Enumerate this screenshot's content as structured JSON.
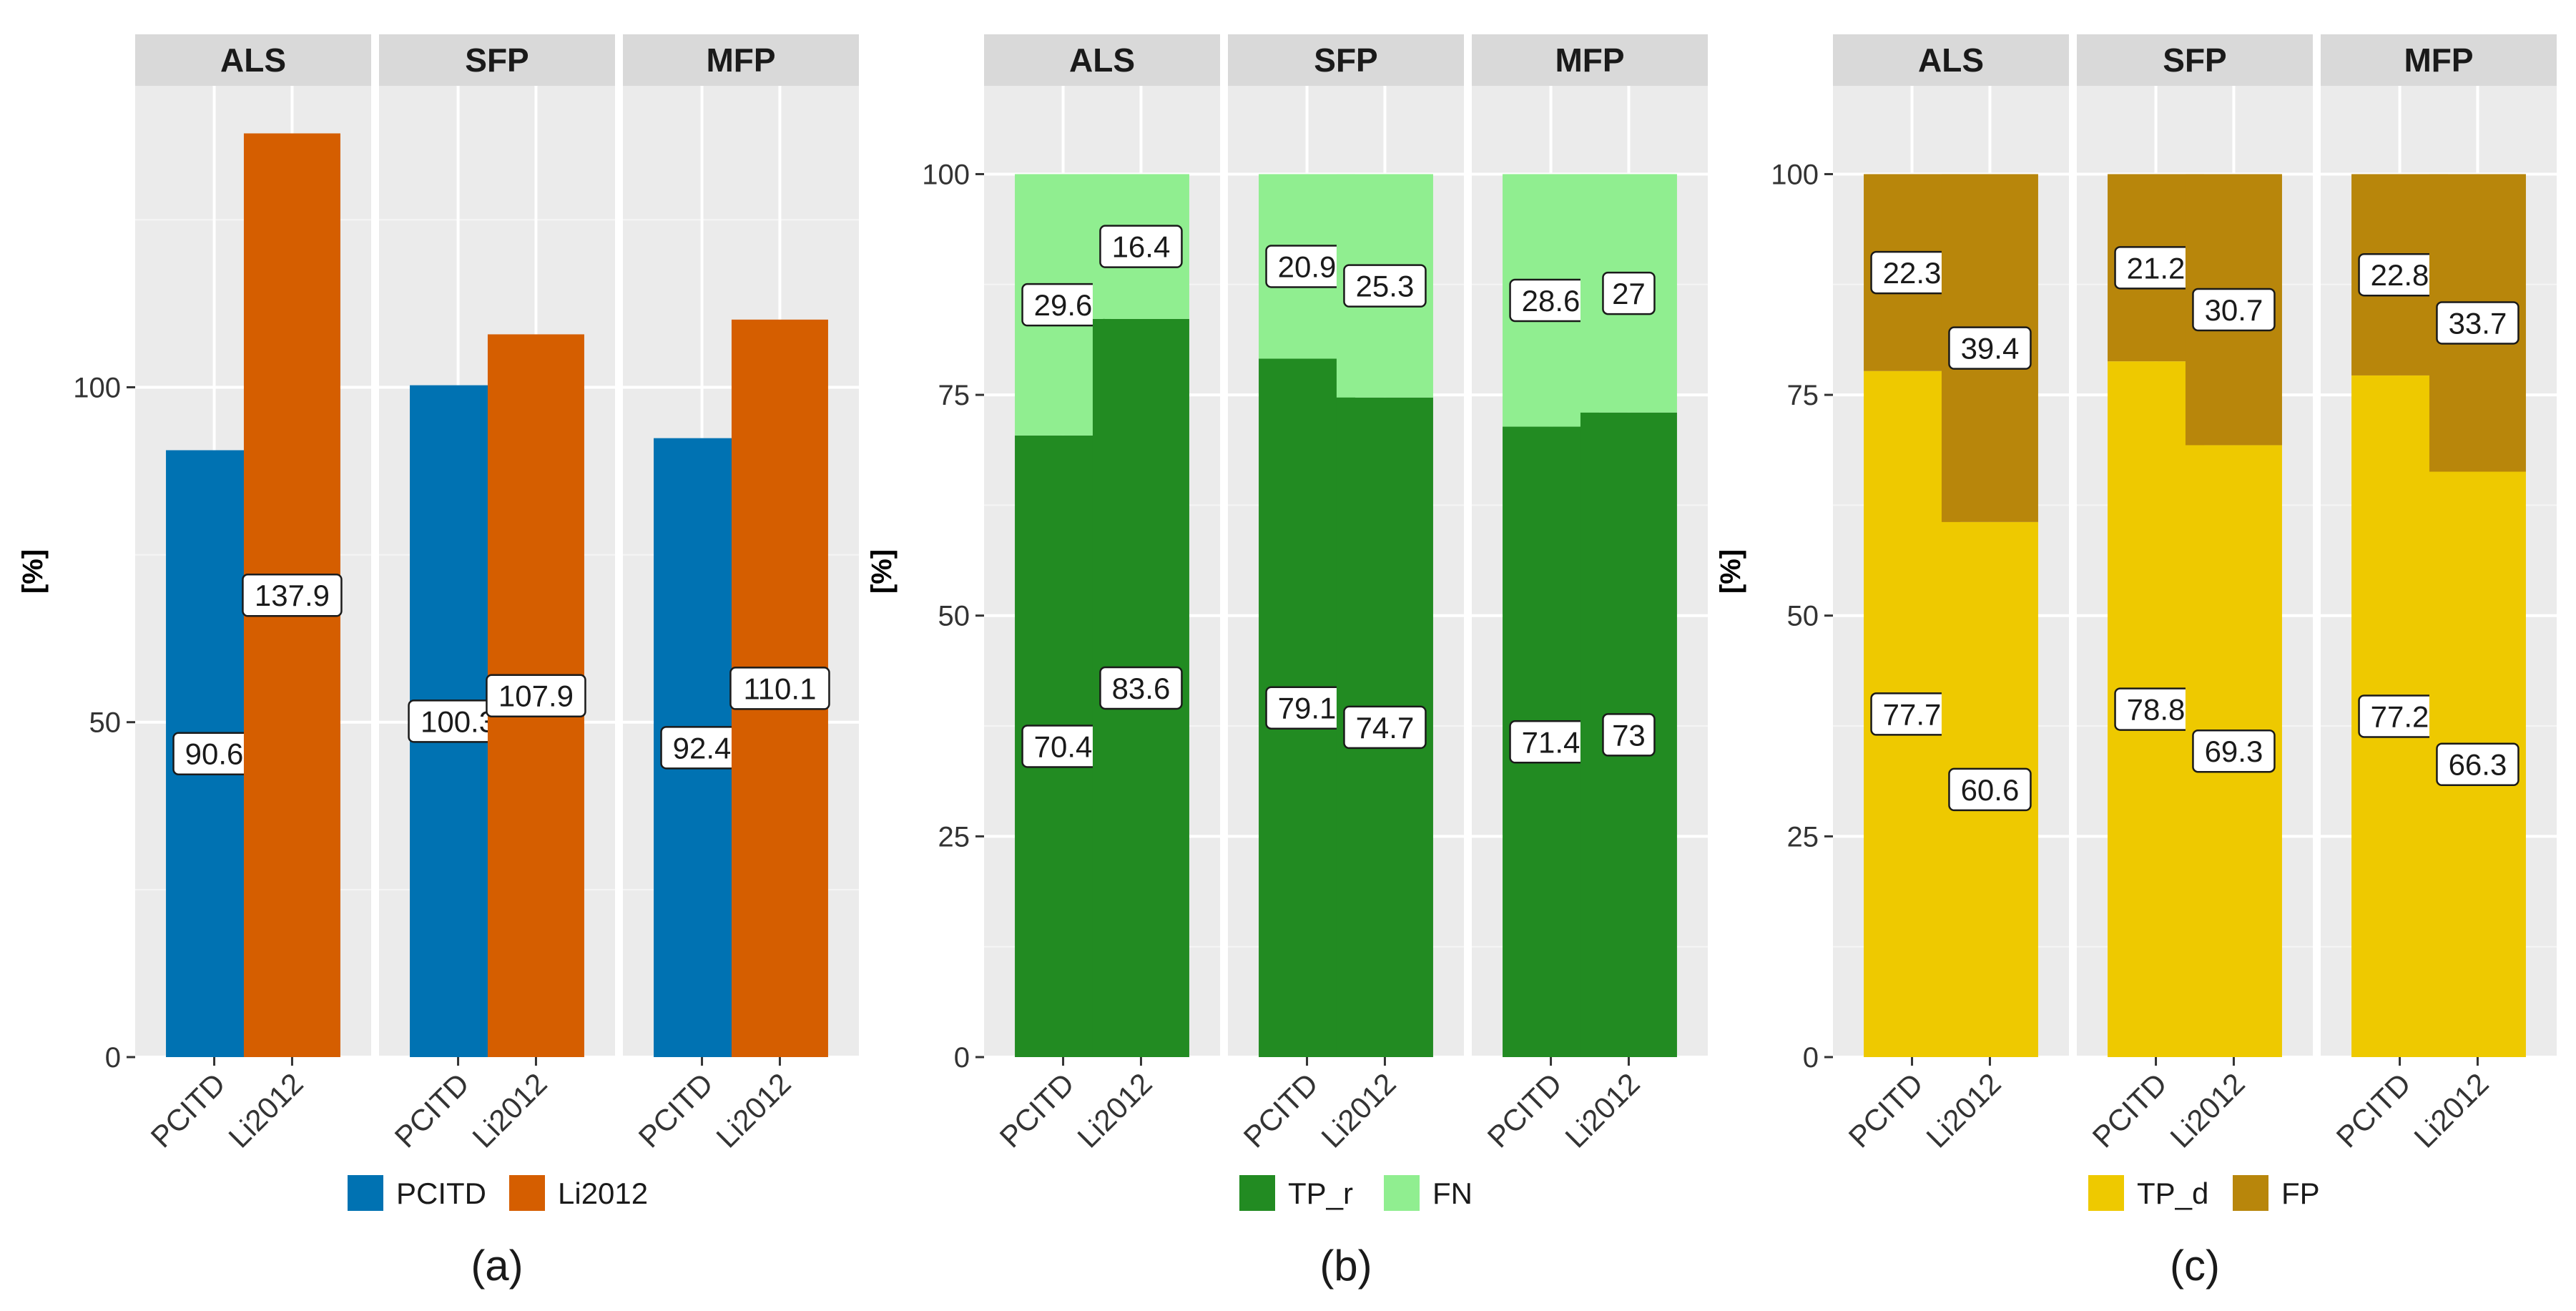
{
  "chart_data": [
    {
      "type": "bar",
      "panel_label": "(a)",
      "ylabel": "[%]",
      "ylim": [
        0,
        145
      ],
      "yticks": [
        0,
        50,
        100
      ],
      "facets": [
        "ALS",
        "SFP",
        "MFP"
      ],
      "categories": [
        "PCITD",
        "Li2012"
      ],
      "legend": [
        "PCITD",
        "Li2012"
      ],
      "colors": [
        "#0072b2",
        "#d55e00"
      ],
      "stacked": false,
      "values": [
        [
          90.6,
          137.9
        ],
        [
          100.3,
          107.9
        ],
        [
          92.4,
          110.1
        ]
      ],
      "labels": [
        [
          "90.6",
          "137.9"
        ],
        [
          "100.3",
          "107.9"
        ],
        [
          "92.4",
          "110.1"
        ]
      ]
    },
    {
      "type": "bar",
      "panel_label": "(b)",
      "ylabel": "[%]",
      "ylim": [
        0,
        110
      ],
      "yticks": [
        0,
        25,
        50,
        75,
        100
      ],
      "facets": [
        "ALS",
        "SFP",
        "MFP"
      ],
      "categories": [
        "PCITD",
        "Li2012"
      ],
      "legend": [
        "TP_r",
        "FN"
      ],
      "colors": [
        "#228b22",
        "#90ee90"
      ],
      "stacked": true,
      "series": [
        {
          "name": "TP_r",
          "values": [
            [
              70.4,
              83.6
            ],
            [
              79.1,
              74.7
            ],
            [
              71.4,
              73
            ]
          ],
          "labels": [
            [
              "70.4",
              "83.6"
            ],
            [
              "79.1",
              "74.7"
            ],
            [
              "71.4",
              "73"
            ]
          ]
        },
        {
          "name": "FN",
          "values": [
            [
              29.6,
              16.4
            ],
            [
              20.9,
              25.3
            ],
            [
              28.6,
              27
            ]
          ],
          "labels": [
            [
              "29.6",
              "16.4"
            ],
            [
              "20.9",
              "25.3"
            ],
            [
              "28.6",
              "27"
            ]
          ]
        }
      ]
    },
    {
      "type": "bar",
      "panel_label": "(c)",
      "ylabel": "[%]",
      "ylim": [
        0,
        110
      ],
      "yticks": [
        0,
        25,
        50,
        75,
        100
      ],
      "facets": [
        "ALS",
        "SFP",
        "MFP"
      ],
      "categories": [
        "PCITD",
        "Li2012"
      ],
      "legend": [
        "TP_d",
        "FP"
      ],
      "colors": [
        "#eec900",
        "#b8860b"
      ],
      "stacked": true,
      "series": [
        {
          "name": "TP_d",
          "values": [
            [
              77.7,
              60.6
            ],
            [
              78.8,
              69.3
            ],
            [
              77.2,
              66.3
            ]
          ],
          "labels": [
            [
              "77.7",
              "60.6"
            ],
            [
              "78.8",
              "69.3"
            ],
            [
              "77.2",
              "66.3"
            ]
          ]
        },
        {
          "name": "FP",
          "values": [
            [
              22.3,
              39.4
            ],
            [
              21.2,
              30.7
            ],
            [
              22.8,
              33.7
            ]
          ],
          "labels": [
            [
              "22.3",
              "39.4"
            ],
            [
              "21.2",
              "30.7"
            ],
            [
              "22.8",
              "33.7"
            ]
          ]
        }
      ]
    }
  ]
}
